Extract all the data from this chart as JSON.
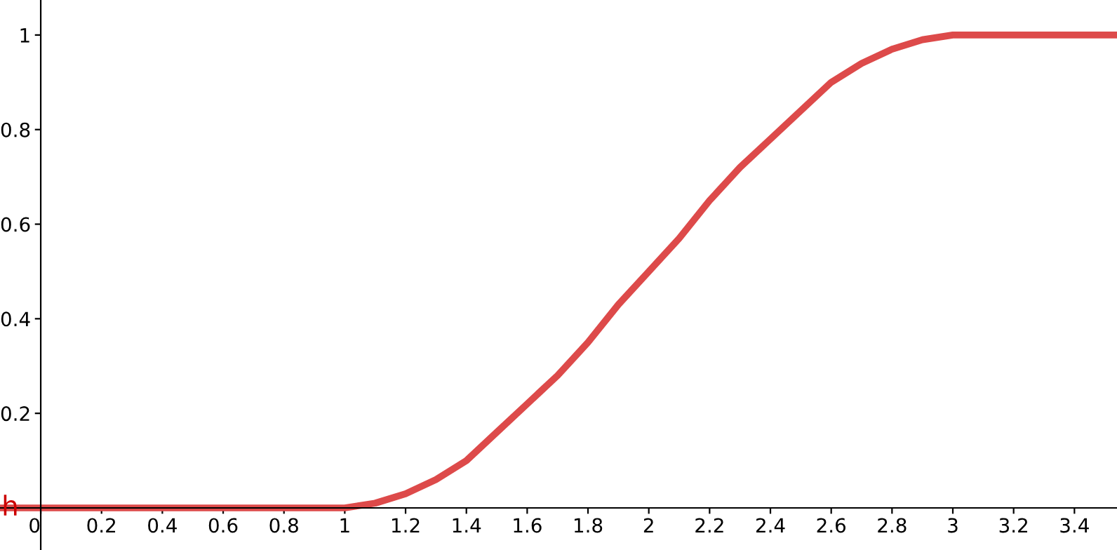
{
  "chart_data": {
    "type": "line",
    "x": [
      -0.134,
      1.0,
      1.1,
      1.2,
      1.3,
      1.4,
      1.5,
      1.6,
      1.7,
      1.8,
      1.9,
      2.0,
      2.1,
      2.2,
      2.3,
      2.4,
      2.5,
      2.6,
      2.7,
      2.8,
      2.9,
      3.0,
      3.54
    ],
    "series": [
      {
        "name": "h",
        "color": "#dd4a4a",
        "values": [
          0,
          0,
          0.01,
          0.03,
          0.06,
          0.1,
          0.16,
          0.22,
          0.28,
          0.35,
          0.43,
          0.5,
          0.57,
          0.65,
          0.72,
          0.78,
          0.84,
          0.9,
          0.94,
          0.97,
          0.99,
          1,
          1
        ]
      }
    ],
    "xlim": [
      -0.134,
      3.54
    ],
    "ylim": [
      -0.089,
      1.074
    ],
    "xticks": [
      0,
      0.2,
      0.4,
      0.6,
      0.8,
      1,
      1.2,
      1.4,
      1.6,
      1.8,
      2,
      2.2,
      2.4,
      2.6,
      2.8,
      3,
      3.2,
      3.4
    ],
    "yticks": [
      0.2,
      0.4,
      0.6,
      0.8,
      1
    ],
    "legend": false,
    "marker": "none",
    "line_style": "solid"
  }
}
